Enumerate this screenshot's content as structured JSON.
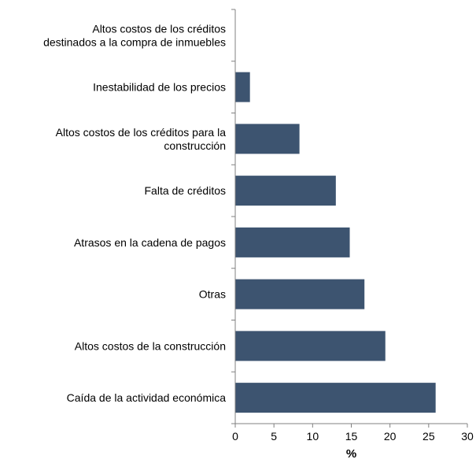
{
  "chart_data": {
    "type": "bar",
    "orientation": "horizontal",
    "categories": [
      [
        "Altos costos de los créditos",
        "destinados a la compra de inmuebles"
      ],
      [
        "Inestabilidad de los precios"
      ],
      [
        "Altos costos de los créditos para la",
        "construcción"
      ],
      [
        "Falta de créditos"
      ],
      [
        "Atrasos en la cadena de pagos"
      ],
      [
        "Otras"
      ],
      [
        "Altos costos de la construcción"
      ],
      [
        "Caída de la actividad económica"
      ]
    ],
    "values": [
      0,
      1.9,
      8.3,
      13.0,
      14.8,
      16.7,
      19.4,
      25.9
    ],
    "xlabel": "%",
    "xlim": [
      0,
      30
    ],
    "xticks": [
      0,
      5,
      10,
      15,
      20,
      25,
      30
    ],
    "bar_color": "#3d5470",
    "axis_color": "#808080",
    "grid": false,
    "legend": "none"
  }
}
